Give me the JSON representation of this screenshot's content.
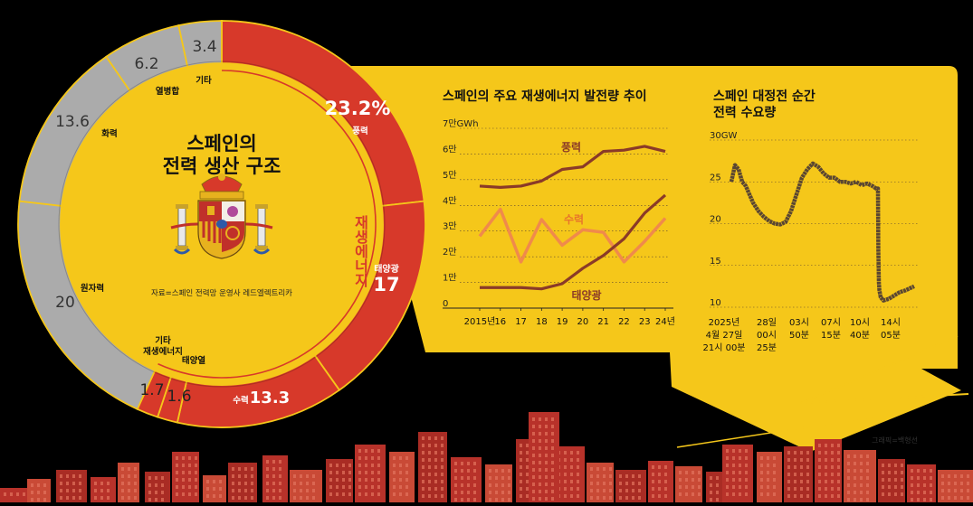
{
  "colors": {
    "background": "#000000",
    "yellow": "#F5C71A",
    "red": "#D7392A",
    "gray": "#ABABAB",
    "orange": "#F08A4B",
    "brown": "#8A3A28",
    "dark_line": "#5A4632"
  },
  "donut": {
    "title_line1": "스페인의",
    "title_line2": "전력 생산 구조",
    "source": "자료=스페인 전력망 운영사 레드엘렉트리카",
    "renewable_label": "재생에너지",
    "emblem": "spain-coat-of-arms"
  },
  "chart_data": [
    {
      "type": "pie",
      "title": "스페인의 전력 생산 구조",
      "unit": "%",
      "slices": [
        {
          "name": "풍력",
          "value": 23.2,
          "value_label": "23.2%",
          "group": "재생에너지"
        },
        {
          "name": "태양광",
          "value": 17,
          "value_label": "17",
          "group": "재생에너지"
        },
        {
          "name": "수력",
          "value": 13.3,
          "value_label": "13.3",
          "group": "재생에너지"
        },
        {
          "name": "태양열",
          "value": 1.6,
          "value_label": "1.6",
          "group": "재생에너지"
        },
        {
          "name": "기타 재생에너지",
          "value": 1.7,
          "value_label": "1.7",
          "group": "재생에너지"
        },
        {
          "name": "원자력",
          "value": 20,
          "value_label": "20"
        },
        {
          "name": "화력",
          "value": 13.6,
          "value_label": "13.6"
        },
        {
          "name": "열병합",
          "value": 6.2,
          "value_label": "6.2"
        },
        {
          "name": "기타",
          "value": 3.4,
          "value_label": "3.4"
        }
      ]
    },
    {
      "type": "line",
      "title": "스페인의 주요 재생에너지 발전량 추이",
      "ytop_label": "7만GWh",
      "yticks": [
        "0",
        "1만",
        "2만",
        "3만",
        "4만",
        "5만",
        "6만"
      ],
      "ylim": [
        0,
        70000
      ],
      "x_labels": [
        "2015년",
        "16",
        "17",
        "18",
        "19",
        "20",
        "21",
        "22",
        "23",
        "24년"
      ],
      "series": [
        {
          "name": "풍력",
          "values": [
            47500,
            47000,
            47500,
            49500,
            54000,
            55000,
            61000,
            61500,
            63000,
            61000
          ]
        },
        {
          "name": "수력",
          "values": [
            28000,
            38500,
            18000,
            34500,
            24500,
            30500,
            29500,
            18000,
            26000,
            35000
          ]
        },
        {
          "name": "태양광",
          "values": [
            8000,
            8000,
            8000,
            7500,
            9500,
            15500,
            20500,
            27000,
            37000,
            44000
          ]
        }
      ]
    },
    {
      "type": "line",
      "title_line1": "스페인 대정전 순간",
      "title_line2": "전력 수요량",
      "ytop_label": "30GW",
      "yticks": [
        "10",
        "15",
        "20",
        "25"
      ],
      "ylim": [
        10,
        30
      ],
      "x_ticks": [
        {
          "line1": "2025년",
          "line2": "4월 27일",
          "line3": "21시 00분"
        },
        {
          "line1": "28일",
          "line2": "00시",
          "line3": "25분"
        },
        {
          "line1": "03시",
          "line2": "50분",
          "line3": ""
        },
        {
          "line1": "07시",
          "line2": "15분",
          "line3": ""
        },
        {
          "line1": "10시",
          "line2": "40분",
          "line3": ""
        },
        {
          "line1": "14시",
          "line2": "05분",
          "line3": ""
        }
      ],
      "series": [
        {
          "name": "전력 수요량",
          "unit": "GW",
          "x_minutes": [
            0,
            20,
            40,
            60,
            80,
            100,
            120,
            150,
            180,
            210,
            240,
            270,
            300,
            330,
            360,
            390,
            420,
            450,
            480,
            510,
            540,
            570,
            600,
            630,
            660,
            690,
            720,
            750,
            780,
            800,
            810,
            812,
            815,
            818,
            825,
            840,
            870,
            900,
            930,
            960,
            990,
            1010
          ],
          "values": [
            25,
            27,
            26.5,
            25,
            24.5,
            23.5,
            22.5,
            21.5,
            20.8,
            20.3,
            20,
            19.9,
            20.2,
            21.5,
            23.5,
            25.5,
            26.5,
            27.2,
            26.8,
            26,
            25.5,
            25.5,
            25,
            25,
            24.8,
            25,
            24.6,
            24.8,
            24.5,
            24.2,
            24.2,
            17,
            13,
            12,
            11.2,
            10.8,
            11,
            11.4,
            11.8,
            12,
            12.3,
            12.5
          ]
        }
      ]
    }
  ],
  "credit": "그래픽=백형선"
}
